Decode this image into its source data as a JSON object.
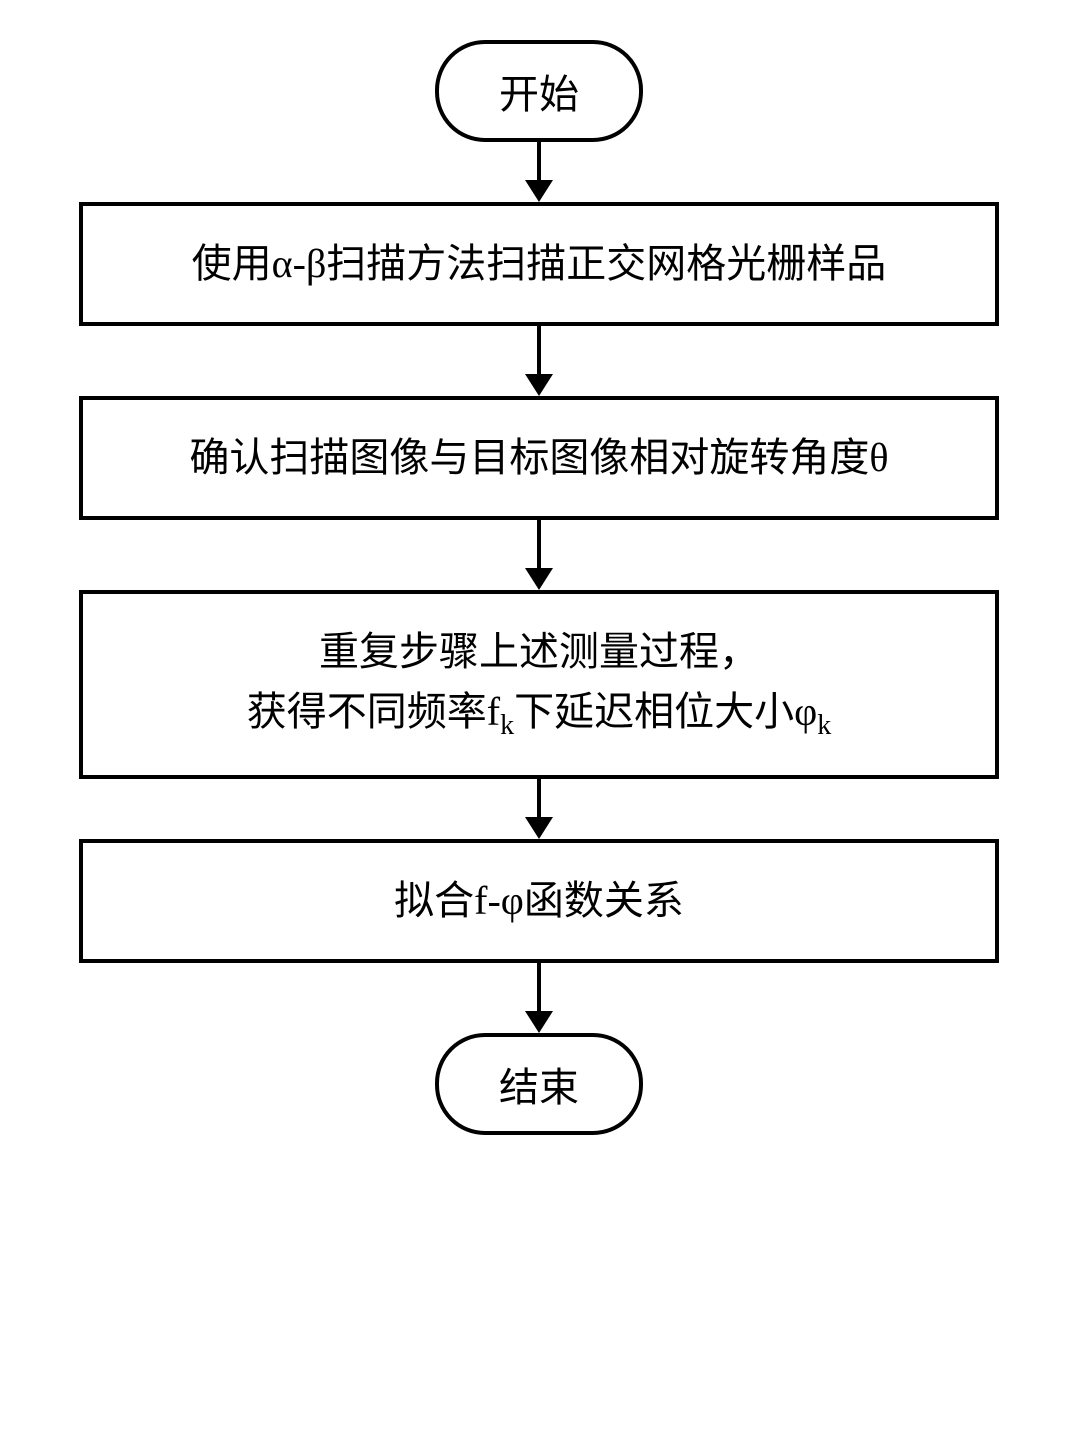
{
  "flowchart": {
    "type": "flowchart",
    "direction": "vertical",
    "background_color": "#ffffff",
    "nodes": [
      {
        "id": "start",
        "shape": "terminal",
        "label": "开始",
        "border_color": "#000000",
        "border_width": 4,
        "border_radius": 50,
        "text_color": "#000000",
        "font_size": 40
      },
      {
        "id": "step1",
        "shape": "process",
        "lines": [
          "使用α-β扫描方法扫描正交网格光栅样品"
        ],
        "border_color": "#000000",
        "border_width": 4,
        "text_color": "#000000",
        "font_size": 40
      },
      {
        "id": "step2",
        "shape": "process",
        "lines": [
          "确认扫描图像与目标图像相对旋转角度θ"
        ],
        "border_color": "#000000",
        "border_width": 4,
        "text_color": "#000000",
        "font_size": 40
      },
      {
        "id": "step3",
        "shape": "process",
        "lines": [
          "重复步骤上述测量过程，",
          "获得不同频率f_k下延迟相位大小φ_k"
        ],
        "line1_plain": "重复步骤上述测量过程，",
        "line2_prefix": "获得不同频率f",
        "line2_sub1": "k",
        "line2_mid": "下延迟相位大小φ",
        "line2_sub2": "k",
        "border_color": "#000000",
        "border_width": 4,
        "text_color": "#000000",
        "font_size": 40
      },
      {
        "id": "step4",
        "shape": "process",
        "lines": [
          "拟合f-φ函数关系"
        ],
        "border_color": "#000000",
        "border_width": 4,
        "text_color": "#000000",
        "font_size": 40
      },
      {
        "id": "end",
        "shape": "terminal",
        "label": "结束",
        "border_color": "#000000",
        "border_width": 4,
        "border_radius": 50,
        "text_color": "#000000",
        "font_size": 40
      }
    ],
    "edges": [
      {
        "from": "start",
        "to": "step1",
        "style": "arrow",
        "color": "#000000"
      },
      {
        "from": "step1",
        "to": "step2",
        "style": "arrow",
        "color": "#000000"
      },
      {
        "from": "step2",
        "to": "step3",
        "style": "arrow",
        "color": "#000000"
      },
      {
        "from": "step3",
        "to": "step4",
        "style": "arrow",
        "color": "#000000"
      },
      {
        "from": "step4",
        "to": "end",
        "style": "arrow",
        "color": "#000000"
      }
    ],
    "arrow": {
      "stem_width": 4,
      "head_width": 28,
      "head_height": 22,
      "color": "#000000"
    }
  }
}
